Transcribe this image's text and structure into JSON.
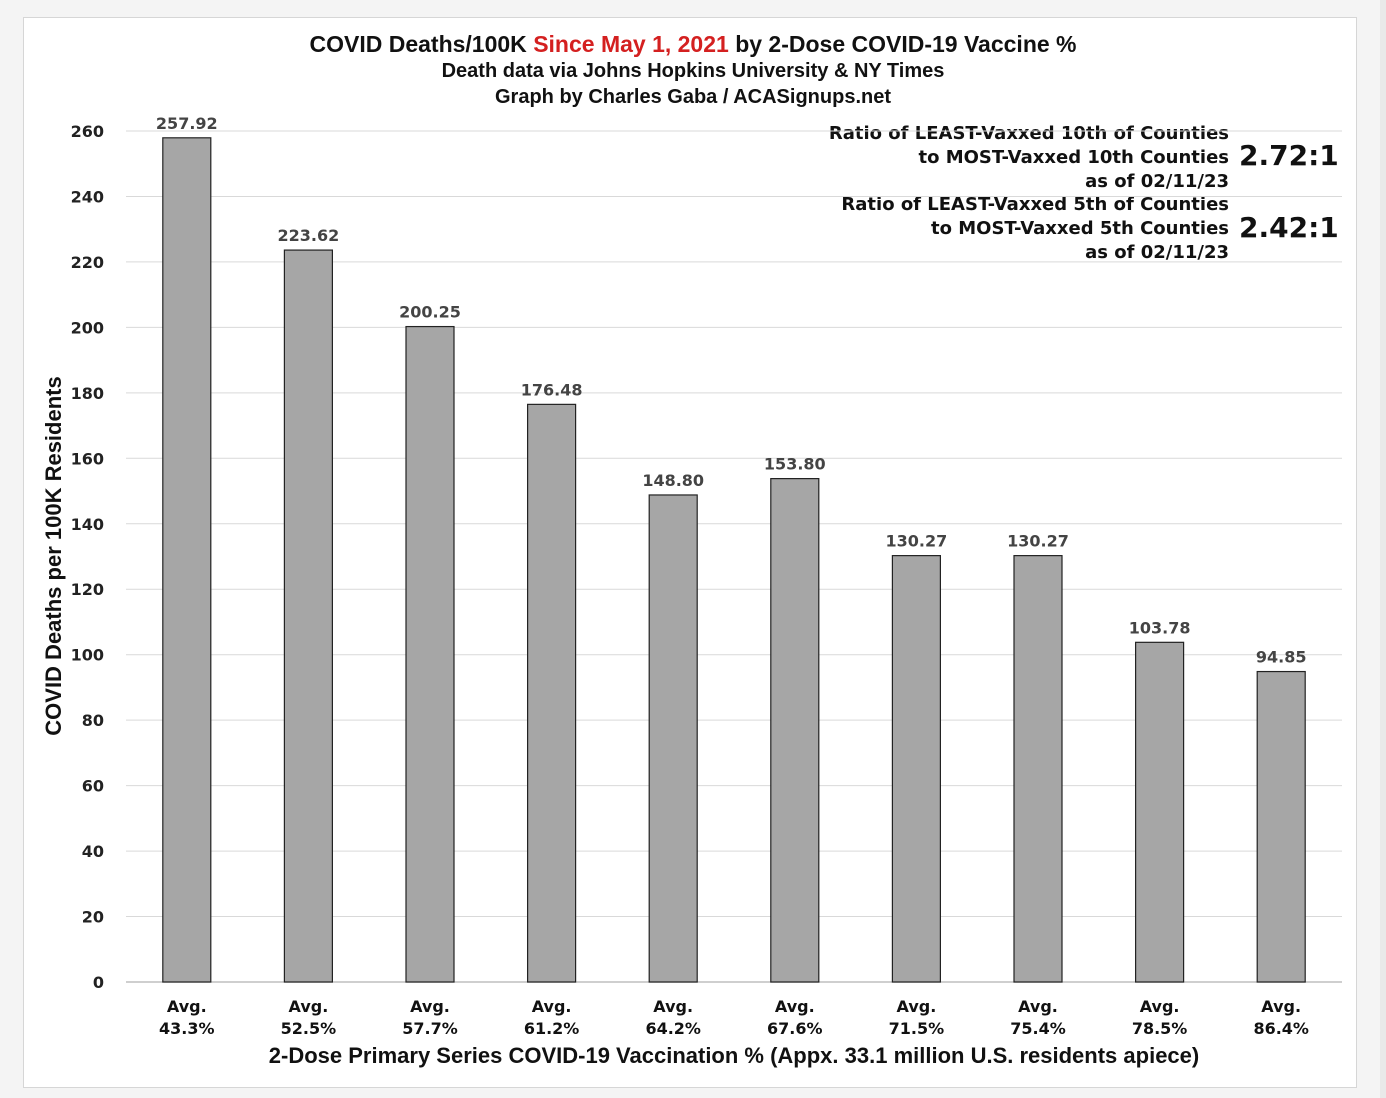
{
  "chart_data": {
    "type": "bar",
    "title_parts": [
      "COVID Deaths/100K ",
      "Since May 1, 2021",
      " by 2-Dose COVID-19 Vaccine %"
    ],
    "title_highlight_color": "#d42020",
    "subtitle_lines": [
      "Death data via Johns Hopkins University & NY Times",
      "Graph by Charles Gaba / ACASignups.net"
    ],
    "ylabel": "COVID Deaths per 100K Residents",
    "xlabel": "2-Dose Primary Series COVID-19 Vaccination % (Appx. 33.1 million U.S. residents apiece)",
    "ylim": [
      0,
      260
    ],
    "yticks": [
      0,
      20,
      40,
      60,
      80,
      100,
      120,
      140,
      160,
      180,
      200,
      220,
      240,
      260
    ],
    "grid": true,
    "bar_color": "#a6a6a6",
    "categories": [
      [
        "Avg.",
        "43.3%"
      ],
      [
        "Avg.",
        "52.5%"
      ],
      [
        "Avg.",
        "57.7%"
      ],
      [
        "Avg.",
        "61.2%"
      ],
      [
        "Avg.",
        "64.2%"
      ],
      [
        "Avg.",
        "67.6%"
      ],
      [
        "Avg.",
        "71.5%"
      ],
      [
        "Avg.",
        "75.4%"
      ],
      [
        "Avg.",
        "78.5%"
      ],
      [
        "Avg.",
        "86.4%"
      ]
    ],
    "values": [
      257.92,
      223.62,
      200.25,
      176.48,
      148.8,
      153.8,
      130.27,
      130.27,
      103.78,
      94.85
    ],
    "data_labels": [
      "257.92",
      "223.62",
      "200.25",
      "176.48",
      "148.80",
      "153.80",
      "130.27",
      "130.27",
      "103.78",
      "94.85"
    ],
    "annotations": [
      {
        "lines": [
          "Ratio of LEAST-Vaxxed 10th of Counties",
          "to MOST-Vaxxed 10th Counties",
          "as of 02/11/23"
        ],
        "ratio": "2.72:1"
      },
      {
        "lines": [
          "Ratio of LEAST-Vaxxed 5th of Counties",
          "to MOST-Vaxxed 5th Counties",
          "as of 02/11/23"
        ],
        "ratio": "2.42:1"
      }
    ]
  }
}
